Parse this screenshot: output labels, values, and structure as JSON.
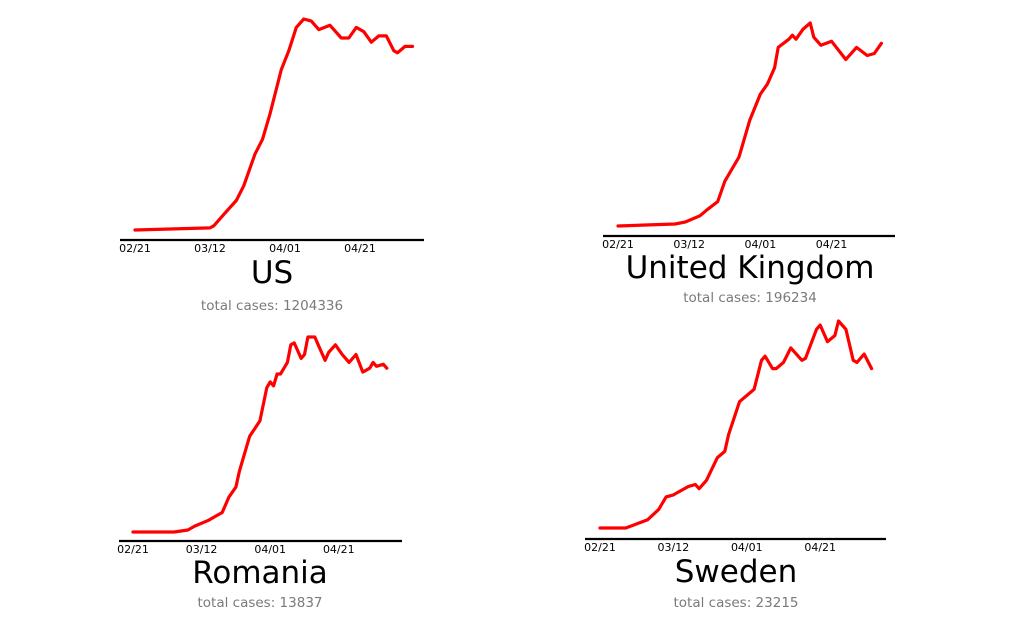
{
  "chart_data": [
    {
      "type": "line",
      "title": "US",
      "subtitle": "total cases: 1204336",
      "xticks": [
        "02/21",
        "03/12",
        "04/01",
        "04/21"
      ],
      "line_color": "#ff0000",
      "grid": false,
      "points": [
        [
          "02/21",
          0
        ],
        [
          "03/12",
          0.01
        ],
        [
          "03/13",
          0.02
        ],
        [
          "03/16",
          0.08
        ],
        [
          "03/19",
          0.14
        ],
        [
          "03/21",
          0.21
        ],
        [
          "03/24",
          0.36
        ],
        [
          "03/26",
          0.43
        ],
        [
          "03/28",
          0.55
        ],
        [
          "03/31",
          0.76
        ],
        [
          "04/02",
          0.85
        ],
        [
          "04/04",
          0.96
        ],
        [
          "04/06",
          1.0
        ],
        [
          "04/08",
          0.99
        ],
        [
          "04/10",
          0.95
        ],
        [
          "04/13",
          0.97
        ],
        [
          "04/16",
          0.91
        ],
        [
          "04/18",
          0.91
        ],
        [
          "04/20",
          0.96
        ],
        [
          "04/22",
          0.94
        ],
        [
          "04/24",
          0.89
        ],
        [
          "04/26",
          0.92
        ],
        [
          "04/28",
          0.92
        ],
        [
          "04/30",
          0.85
        ],
        [
          "05/01",
          0.84
        ],
        [
          "05/03",
          0.87
        ],
        [
          "05/05",
          0.87
        ]
      ]
    },
    {
      "type": "line",
      "title": "United Kingdom",
      "subtitle": "total cases: 196234",
      "xticks": [
        "02/21",
        "03/12",
        "04/01",
        "04/21"
      ],
      "line_color": "#ff0000",
      "grid": false,
      "points": [
        [
          "02/21",
          0
        ],
        [
          "03/08",
          0.01
        ],
        [
          "03/11",
          0.02
        ],
        [
          "03/15",
          0.05
        ],
        [
          "03/17",
          0.08
        ],
        [
          "03/20",
          0.12
        ],
        [
          "03/22",
          0.22
        ],
        [
          "03/26",
          0.34
        ],
        [
          "03/29",
          0.52
        ],
        [
          "04/01",
          0.65
        ],
        [
          "04/03",
          0.7
        ],
        [
          "04/05",
          0.78
        ],
        [
          "04/06",
          0.88
        ],
        [
          "04/09",
          0.92
        ],
        [
          "04/10",
          0.94
        ],
        [
          "04/11",
          0.92
        ],
        [
          "04/13",
          0.97
        ],
        [
          "04/15",
          1.0
        ],
        [
          "04/16",
          0.93
        ],
        [
          "04/18",
          0.89
        ],
        [
          "04/21",
          0.91
        ],
        [
          "04/25",
          0.82
        ],
        [
          "04/28",
          0.88
        ],
        [
          "05/01",
          0.84
        ],
        [
          "05/03",
          0.85
        ],
        [
          "05/05",
          0.9
        ]
      ]
    },
    {
      "type": "line",
      "title": "Romania",
      "subtitle": "total cases: 13837",
      "xticks": [
        "02/21",
        "03/12",
        "04/01",
        "04/21"
      ],
      "line_color": "#ff0000",
      "grid": false,
      "points": [
        [
          "02/21",
          0
        ],
        [
          "03/04",
          0.0
        ],
        [
          "03/08",
          0.01
        ],
        [
          "03/10",
          0.03
        ],
        [
          "03/14",
          0.06
        ],
        [
          "03/16",
          0.08
        ],
        [
          "03/18",
          0.1
        ],
        [
          "03/20",
          0.18
        ],
        [
          "03/22",
          0.23
        ],
        [
          "03/23",
          0.31
        ],
        [
          "03/26",
          0.49
        ],
        [
          "03/29",
          0.57
        ],
        [
          "03/31",
          0.74
        ],
        [
          "04/01",
          0.77
        ],
        [
          "04/02",
          0.75
        ],
        [
          "04/03",
          0.81
        ],
        [
          "04/04",
          0.81
        ],
        [
          "04/06",
          0.87
        ],
        [
          "04/07",
          0.96
        ],
        [
          "04/08",
          0.97
        ],
        [
          "04/10",
          0.89
        ],
        [
          "04/11",
          0.91
        ],
        [
          "04/12",
          1.0
        ],
        [
          "04/14",
          1.0
        ],
        [
          "04/15",
          0.96
        ],
        [
          "04/17",
          0.88
        ],
        [
          "04/18",
          0.92
        ],
        [
          "04/20",
          0.96
        ],
        [
          "04/22",
          0.91
        ],
        [
          "04/24",
          0.87
        ],
        [
          "04/26",
          0.91
        ],
        [
          "04/28",
          0.82
        ],
        [
          "04/30",
          0.84
        ],
        [
          "05/01",
          0.87
        ],
        [
          "05/02",
          0.85
        ],
        [
          "05/04",
          0.86
        ],
        [
          "05/05",
          0.84
        ]
      ]
    },
    {
      "type": "line",
      "title": "Sweden",
      "subtitle": "total cases: 23215",
      "xticks": [
        "02/21",
        "03/12",
        "04/01",
        "04/21"
      ],
      "line_color": "#ff0000",
      "grid": false,
      "points": [
        [
          "02/21",
          0
        ],
        [
          "02/28",
          0.0
        ],
        [
          "03/02",
          0.02
        ],
        [
          "03/05",
          0.04
        ],
        [
          "03/08",
          0.09
        ],
        [
          "03/10",
          0.15
        ],
        [
          "03/12",
          0.16
        ],
        [
          "03/14",
          0.18
        ],
        [
          "03/16",
          0.2
        ],
        [
          "03/18",
          0.21
        ],
        [
          "03/19",
          0.19
        ],
        [
          "03/21",
          0.23
        ],
        [
          "03/24",
          0.34
        ],
        [
          "03/26",
          0.37
        ],
        [
          "03/27",
          0.45
        ],
        [
          "03/30",
          0.61
        ],
        [
          "04/01",
          0.64
        ],
        [
          "04/03",
          0.67
        ],
        [
          "04/05",
          0.81
        ],
        [
          "04/06",
          0.83
        ],
        [
          "04/08",
          0.77
        ],
        [
          "04/09",
          0.77
        ],
        [
          "04/11",
          0.8
        ],
        [
          "04/13",
          0.87
        ],
        [
          "04/16",
          0.81
        ],
        [
          "04/17",
          0.82
        ],
        [
          "04/20",
          0.96
        ],
        [
          "04/21",
          0.98
        ],
        [
          "04/23",
          0.9
        ],
        [
          "04/25",
          0.93
        ],
        [
          "04/26",
          1.0
        ],
        [
          "04/28",
          0.96
        ],
        [
          "04/30",
          0.81
        ],
        [
          "05/01",
          0.8
        ],
        [
          "05/03",
          0.84
        ],
        [
          "05/05",
          0.77
        ]
      ]
    }
  ]
}
